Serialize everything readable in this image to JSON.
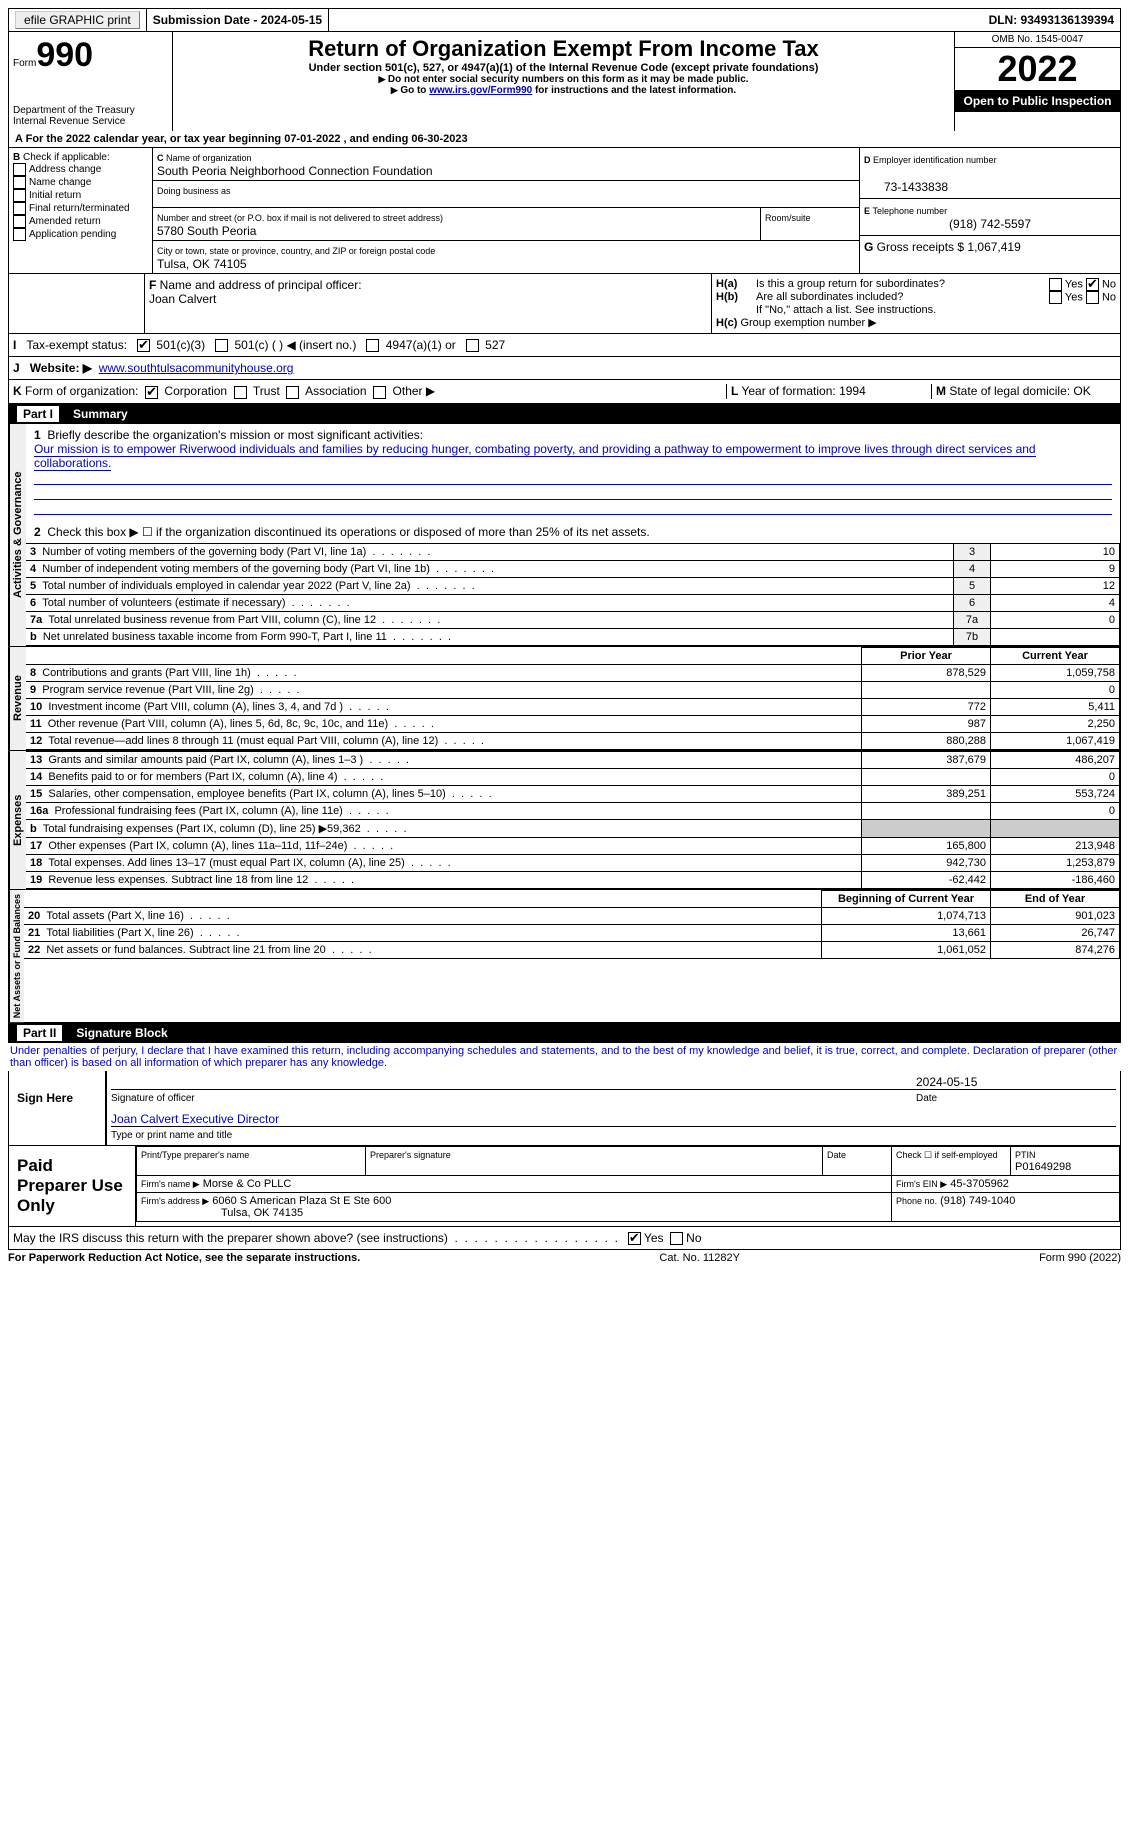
{
  "topbar": {
    "efile": "efile GRAPHIC print",
    "submission": "Submission Date - 2024-05-15",
    "dln": "DLN: 93493136139394"
  },
  "header": {
    "form_prefix": "Form",
    "form_number": "990",
    "title": "Return of Organization Exempt From Income Tax",
    "subtitle": "Under section 501(c), 527, or 4947(a)(1) of the Internal Revenue Code (except private foundations)",
    "note1": "Do not enter social security numbers on this form as it may be made public.",
    "note2_prefix": "Go to ",
    "note2_link": "www.irs.gov/Form990",
    "note2_suffix": " for instructions and the latest information.",
    "dept": "Department of the Treasury",
    "irs": "Internal Revenue Service",
    "omb": "OMB No. 1545-0047",
    "year": "2022",
    "inspection": "Open to Public Inspection"
  },
  "line_a": "For the 2022 calendar year, or tax year beginning 07-01-2022  , and ending 06-30-2023",
  "section_b": {
    "label": "Check if applicable:",
    "opts": [
      "Address change",
      "Name change",
      "Initial return",
      "Final return/terminated",
      "Amended return",
      "Application pending"
    ]
  },
  "section_c": {
    "name_label": "Name of organization",
    "name": "South Peoria Neighborhood Connection Foundation",
    "dba_label": "Doing business as",
    "addr_label": "Number and street (or P.O. box if mail is not delivered to street address)",
    "room_label": "Room/suite",
    "addr": "5780 South Peoria",
    "city_label": "City or town, state or province, country, and ZIP or foreign postal code",
    "city": "Tulsa, OK  74105"
  },
  "section_d": {
    "label": "Employer identification number",
    "value": "73-1433838"
  },
  "section_e": {
    "label": "Telephone number",
    "value": "(918) 742-5597"
  },
  "section_g": {
    "label": "Gross receipts $",
    "value": "1,067,419"
  },
  "section_f": {
    "label": "Name and address of principal officer:",
    "name": "Joan Calvert"
  },
  "section_h": {
    "a": "Is this a group return for subordinates?",
    "b": "Are all subordinates included?",
    "b_note": "If \"No,\" attach a list. See instructions.",
    "c": "Group exemption number ▶",
    "yes": "Yes",
    "no": "No"
  },
  "section_i": {
    "label": "Tax-exempt status:",
    "opts": [
      "501(c)(3)",
      "501(c) (  ) ◀ (insert no.)",
      "4947(a)(1) or",
      "527"
    ]
  },
  "section_j": {
    "label": "Website: ▶",
    "value": "www.southtulsacommunityhouse.org"
  },
  "section_k": {
    "label": "Form of organization:",
    "opts": [
      "Corporation",
      "Trust",
      "Association",
      "Other ▶"
    ]
  },
  "section_l": {
    "label": "Year of formation:",
    "value": "1994"
  },
  "section_m": {
    "label": "State of legal domicile:",
    "value": "OK"
  },
  "part1": {
    "title": "Part I",
    "label": "Summary",
    "q1_label": "Briefly describe the organization's mission or most significant activities:",
    "q1_text": "Our mission is to empower Riverwood individuals and families by reducing hunger, combating poverty, and providing a pathway to empowerment to improve lives through direct services and collaborations.",
    "q2": "Check this box ▶ ☐ if the organization discontinued its operations or disposed of more than 25% of its net assets.",
    "rows_gov": [
      {
        "n": "3",
        "t": "Number of voting members of the governing body (Part VI, line 1a)",
        "r": "3",
        "v": "10"
      },
      {
        "n": "4",
        "t": "Number of independent voting members of the governing body (Part VI, line 1b)",
        "r": "4",
        "v": "9"
      },
      {
        "n": "5",
        "t": "Total number of individuals employed in calendar year 2022 (Part V, line 2a)",
        "r": "5",
        "v": "12"
      },
      {
        "n": "6",
        "t": "Total number of volunteers (estimate if necessary)",
        "r": "6",
        "v": "4"
      },
      {
        "n": "7a",
        "t": "Total unrelated business revenue from Part VIII, column (C), line 12",
        "r": "7a",
        "v": "0"
      },
      {
        "n": "b",
        "t": "Net unrelated business taxable income from Form 990-T, Part I, line 11",
        "r": "7b",
        "v": ""
      }
    ],
    "col_prior": "Prior Year",
    "col_current": "Current Year",
    "rows_rev": [
      {
        "n": "8",
        "t": "Contributions and grants (Part VIII, line 1h)",
        "p": "878,529",
        "c": "1,059,758"
      },
      {
        "n": "9",
        "t": "Program service revenue (Part VIII, line 2g)",
        "p": "",
        "c": "0"
      },
      {
        "n": "10",
        "t": "Investment income (Part VIII, column (A), lines 3, 4, and 7d )",
        "p": "772",
        "c": "5,411"
      },
      {
        "n": "11",
        "t": "Other revenue (Part VIII, column (A), lines 5, 6d, 8c, 9c, 10c, and 11e)",
        "p": "987",
        "c": "2,250"
      },
      {
        "n": "12",
        "t": "Total revenue—add lines 8 through 11 (must equal Part VIII, column (A), line 12)",
        "p": "880,288",
        "c": "1,067,419"
      }
    ],
    "rows_exp": [
      {
        "n": "13",
        "t": "Grants and similar amounts paid (Part IX, column (A), lines 1–3 )",
        "p": "387,679",
        "c": "486,207"
      },
      {
        "n": "14",
        "t": "Benefits paid to or for members (Part IX, column (A), line 4)",
        "p": "",
        "c": "0"
      },
      {
        "n": "15",
        "t": "Salaries, other compensation, employee benefits (Part IX, column (A), lines 5–10)",
        "p": "389,251",
        "c": "553,724"
      },
      {
        "n": "16a",
        "t": "Professional fundraising fees (Part IX, column (A), line 11e)",
        "p": "",
        "c": "0"
      },
      {
        "n": "b",
        "t": "Total fundraising expenses (Part IX, column (D), line 25) ▶59,362",
        "p": "shade",
        "c": "shade"
      },
      {
        "n": "17",
        "t": "Other expenses (Part IX, column (A), lines 11a–11d, 11f–24e)",
        "p": "165,800",
        "c": "213,948"
      },
      {
        "n": "18",
        "t": "Total expenses. Add lines 13–17 (must equal Part IX, column (A), line 25)",
        "p": "942,730",
        "c": "1,253,879"
      },
      {
        "n": "19",
        "t": "Revenue less expenses. Subtract line 18 from line 12",
        "p": "-62,442",
        "c": "-186,460"
      }
    ],
    "col_beg": "Beginning of Current Year",
    "col_end": "End of Year",
    "rows_net": [
      {
        "n": "20",
        "t": "Total assets (Part X, line 16)",
        "p": "1,074,713",
        "c": "901,023"
      },
      {
        "n": "21",
        "t": "Total liabilities (Part X, line 26)",
        "p": "13,661",
        "c": "26,747"
      },
      {
        "n": "22",
        "t": "Net assets or fund balances. Subtract line 21 from line 20",
        "p": "1,061,052",
        "c": "874,276"
      }
    ],
    "vert_gov": "Activities & Governance",
    "vert_rev": "Revenue",
    "vert_exp": "Expenses",
    "vert_net": "Net Assets or Fund Balances"
  },
  "part2": {
    "title": "Part II",
    "label": "Signature Block",
    "penalties": "Under penalties of perjury, I declare that I have examined this return, including accompanying schedules and statements, and to the best of my knowledge and belief, it is true, correct, and complete. Declaration of preparer (other than officer) is based on all information of which preparer has any knowledge.",
    "sign_here": "Sign Here",
    "sig_officer": "Signature of officer",
    "sig_date": "Date",
    "sig_date_val": "2024-05-15",
    "sig_name": "Joan Calvert Executive Director",
    "sig_name_label": "Type or print name and title",
    "paid": "Paid Preparer Use Only",
    "prep_name_label": "Print/Type preparer's name",
    "prep_sig_label": "Preparer's signature",
    "date_label": "Date",
    "check_self": "Check ☐ if self-employed",
    "ptin_label": "PTIN",
    "ptin": "P01649298",
    "firm_name_label": "Firm's name  ▶",
    "firm_name": "Morse & Co PLLC",
    "firm_ein_label": "Firm's EIN ▶",
    "firm_ein": "45-3705962",
    "firm_addr_label": "Firm's address ▶",
    "firm_addr": "6060 S American Plaza St E Ste 600",
    "firm_city": "Tulsa, OK  74135",
    "phone_label": "Phone no.",
    "phone": "(918) 749-1040",
    "discuss": "May the IRS discuss this return with the preparer shown above? (see instructions)",
    "yes": "Yes",
    "no": "No"
  },
  "footer": {
    "left": "For Paperwork Reduction Act Notice, see the separate instructions.",
    "mid": "Cat. No. 11282Y",
    "right": "Form 990 (2022)"
  }
}
